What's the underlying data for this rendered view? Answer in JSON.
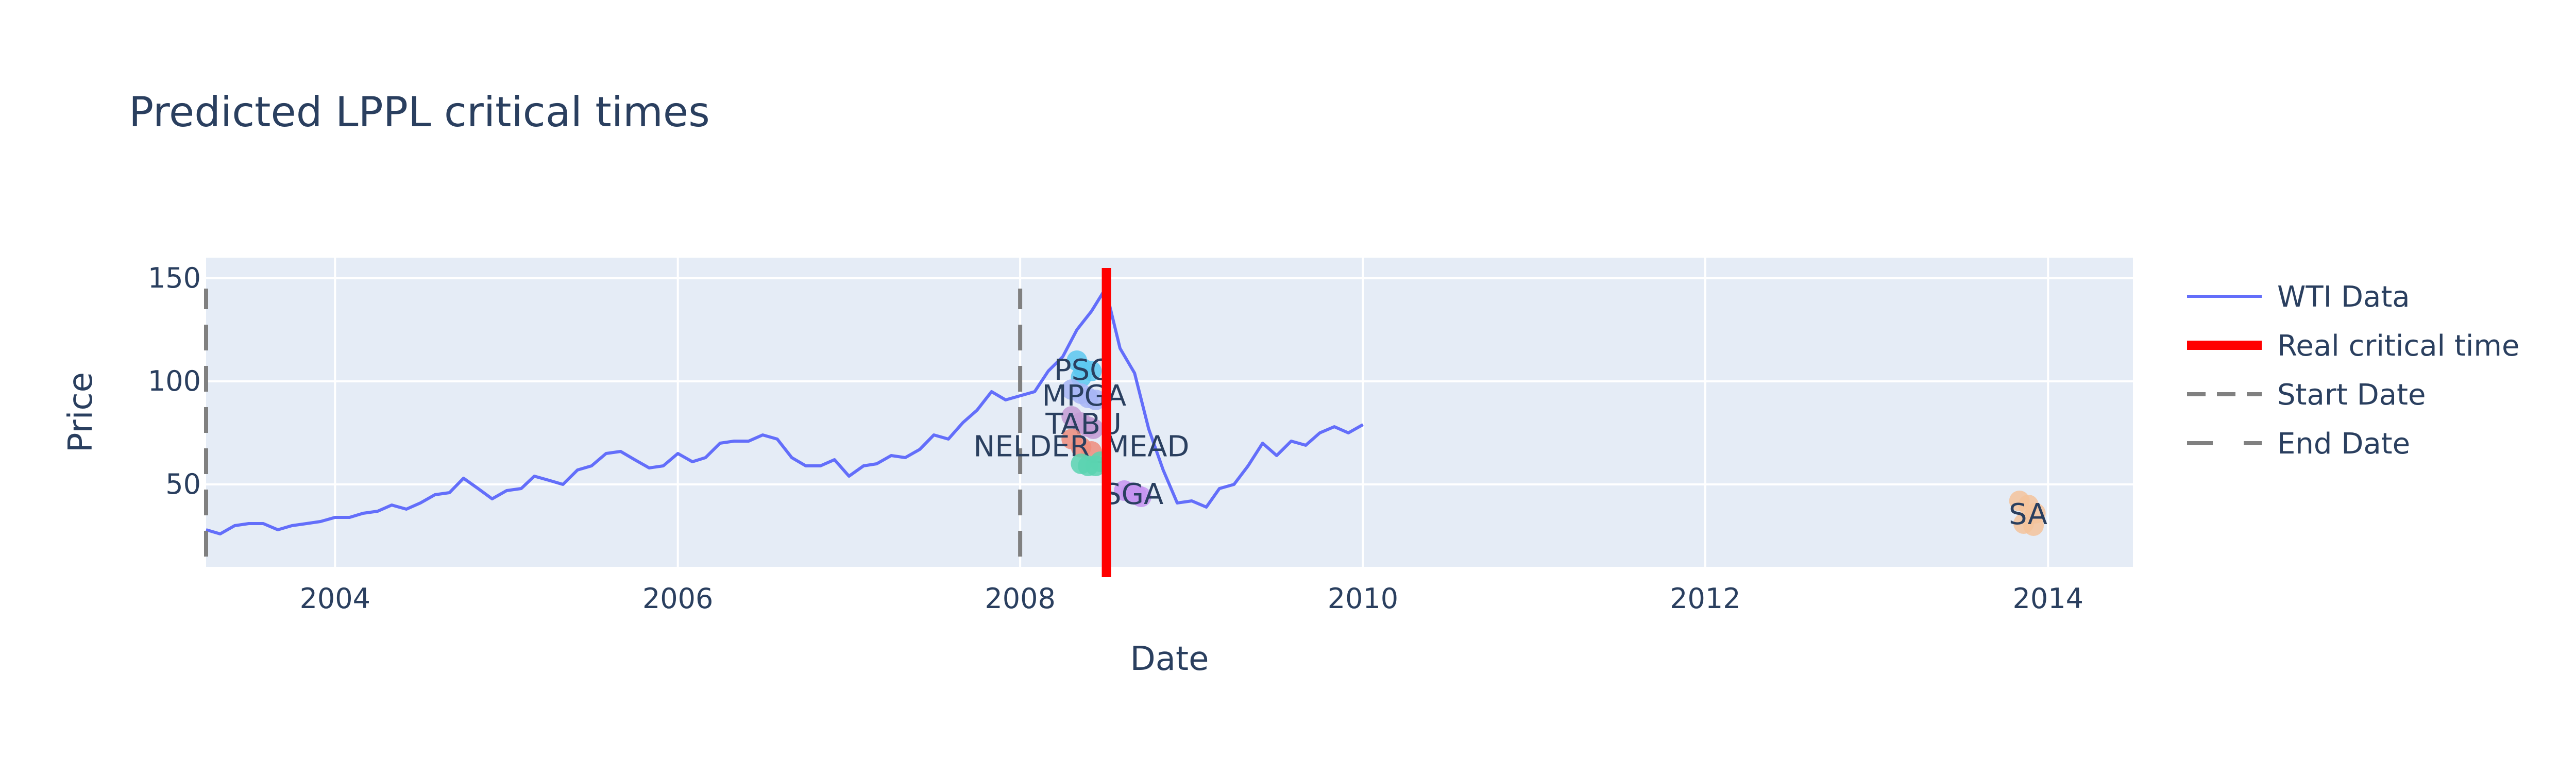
{
  "chart_data": {
    "type": "line",
    "title": "Predicted LPPL critical times",
    "xlabel": "Date",
    "ylabel": "Price",
    "xlim": [
      "2003-04-01",
      "2014-07-01"
    ],
    "ylim": [
      10,
      160
    ],
    "x_ticks": [
      "2004",
      "2006",
      "2008",
      "2010",
      "2012",
      "2014"
    ],
    "y_ticks": [
      50,
      100,
      150
    ],
    "grid": true,
    "legend_position": "right",
    "series": [
      {
        "name": "WTI Data",
        "color": "#636efa",
        "points": [
          [
            "2003-04-01",
            28
          ],
          [
            "2003-05-01",
            26
          ],
          [
            "2003-06-01",
            30
          ],
          [
            "2003-07-01",
            31
          ],
          [
            "2003-08-01",
            31
          ],
          [
            "2003-09-01",
            28
          ],
          [
            "2003-10-01",
            30
          ],
          [
            "2003-11-01",
            31
          ],
          [
            "2003-12-01",
            32
          ],
          [
            "2004-01-01",
            34
          ],
          [
            "2004-02-01",
            34
          ],
          [
            "2004-03-01",
            36
          ],
          [
            "2004-04-01",
            37
          ],
          [
            "2004-05-01",
            40
          ],
          [
            "2004-06-01",
            38
          ],
          [
            "2004-07-01",
            41
          ],
          [
            "2004-08-01",
            45
          ],
          [
            "2004-09-01",
            46
          ],
          [
            "2004-10-01",
            53
          ],
          [
            "2004-11-01",
            48
          ],
          [
            "2004-12-01",
            43
          ],
          [
            "2005-01-01",
            47
          ],
          [
            "2005-02-01",
            48
          ],
          [
            "2005-03-01",
            54
          ],
          [
            "2005-04-01",
            52
          ],
          [
            "2005-05-01",
            50
          ],
          [
            "2005-06-01",
            57
          ],
          [
            "2005-07-01",
            59
          ],
          [
            "2005-08-01",
            65
          ],
          [
            "2005-09-01",
            66
          ],
          [
            "2005-10-01",
            62
          ],
          [
            "2005-11-01",
            58
          ],
          [
            "2005-12-01",
            59
          ],
          [
            "2006-01-01",
            65
          ],
          [
            "2006-02-01",
            61
          ],
          [
            "2006-03-01",
            63
          ],
          [
            "2006-04-01",
            70
          ],
          [
            "2006-05-01",
            71
          ],
          [
            "2006-06-01",
            71
          ],
          [
            "2006-07-01",
            74
          ],
          [
            "2006-08-01",
            72
          ],
          [
            "2006-09-01",
            63
          ],
          [
            "2006-10-01",
            59
          ],
          [
            "2006-11-01",
            59
          ],
          [
            "2006-12-01",
            62
          ],
          [
            "2007-01-01",
            54
          ],
          [
            "2007-02-01",
            59
          ],
          [
            "2007-03-01",
            60
          ],
          [
            "2007-04-01",
            64
          ],
          [
            "2007-05-01",
            63
          ],
          [
            "2007-06-01",
            67
          ],
          [
            "2007-07-01",
            74
          ],
          [
            "2007-08-01",
            72
          ],
          [
            "2007-09-01",
            80
          ],
          [
            "2007-10-01",
            86
          ],
          [
            "2007-11-01",
            95
          ],
          [
            "2007-12-01",
            91
          ],
          [
            "2008-01-01",
            93
          ],
          [
            "2008-02-01",
            95
          ],
          [
            "2008-03-01",
            105
          ],
          [
            "2008-04-01",
            112
          ],
          [
            "2008-05-01",
            125
          ],
          [
            "2008-06-01",
            134
          ],
          [
            "2008-07-01",
            145
          ],
          [
            "2008-08-01",
            116
          ],
          [
            "2008-09-01",
            104
          ],
          [
            "2008-10-01",
            77
          ],
          [
            "2008-11-01",
            57
          ],
          [
            "2008-12-01",
            41
          ],
          [
            "2009-01-01",
            42
          ],
          [
            "2009-02-01",
            39
          ],
          [
            "2009-03-01",
            48
          ],
          [
            "2009-04-01",
            50
          ],
          [
            "2009-05-01",
            59
          ],
          [
            "2009-06-01",
            70
          ],
          [
            "2009-07-01",
            64
          ],
          [
            "2009-08-01",
            71
          ],
          [
            "2009-09-01",
            69
          ],
          [
            "2009-10-01",
            75
          ],
          [
            "2009-11-01",
            78
          ],
          [
            "2009-12-01",
            75
          ],
          [
            "2010-01-01",
            79
          ]
        ]
      },
      {
        "name": "Real critical time",
        "color": "#ff0000",
        "x": "2008-07-03",
        "y": [
          5,
          155
        ]
      },
      {
        "name": "Start Date",
        "color": "#808080",
        "x": "2003-04-01",
        "y": [
          15,
          145
        ]
      },
      {
        "name": "End Date",
        "color": "#808080",
        "x": "2008-01-01",
        "y": [
          15,
          145
        ]
      }
    ],
    "predictions": [
      {
        "label": "PSO",
        "color": "#5cc8f0",
        "points": [
          [
            "2008-05-01",
            110
          ],
          [
            "2008-05-15",
            106
          ],
          [
            "2008-06-01",
            105
          ],
          [
            "2008-05-10",
            102
          ]
        ]
      },
      {
        "label": "MPGA",
        "color": "#a7b5f5",
        "points": [
          [
            "2008-04-20",
            96
          ],
          [
            "2008-05-10",
            94
          ],
          [
            "2008-05-25",
            92
          ],
          [
            "2008-06-10",
            91
          ]
        ]
      },
      {
        "label": "TABU",
        "color": "#c39bd3",
        "points": [
          [
            "2008-04-20",
            83
          ],
          [
            "2008-05-10",
            80
          ],
          [
            "2008-05-25",
            78
          ],
          [
            "2008-06-05",
            77
          ]
        ]
      },
      {
        "label": "NELDER_MEAD",
        "color": "#ef8c7b",
        "points": [
          [
            "2008-04-20",
            72
          ],
          [
            "2008-05-10",
            68
          ],
          [
            "2008-06-01",
            66
          ]
        ]
      },
      {
        "label": "",
        "color": "#5bd3b0",
        "points": [
          [
            "2008-05-10",
            60
          ],
          [
            "2008-05-25",
            59
          ],
          [
            "2008-06-10",
            59
          ],
          [
            "2008-06-20",
            61
          ]
        ]
      },
      {
        "label": "SGA",
        "color": "#c594f0",
        "points": [
          [
            "2008-08-10",
            47
          ],
          [
            "2008-08-25",
            46
          ],
          [
            "2008-09-05",
            45
          ],
          [
            "2008-09-15",
            44
          ]
        ]
      },
      {
        "label": "SA",
        "color": "#f5c39b",
        "points": [
          [
            "2013-11-01",
            42
          ],
          [
            "2013-11-20",
            40
          ],
          [
            "2013-12-05",
            36
          ],
          [
            "2013-11-10",
            31
          ],
          [
            "2013-12-01",
            30
          ]
        ]
      }
    ]
  }
}
